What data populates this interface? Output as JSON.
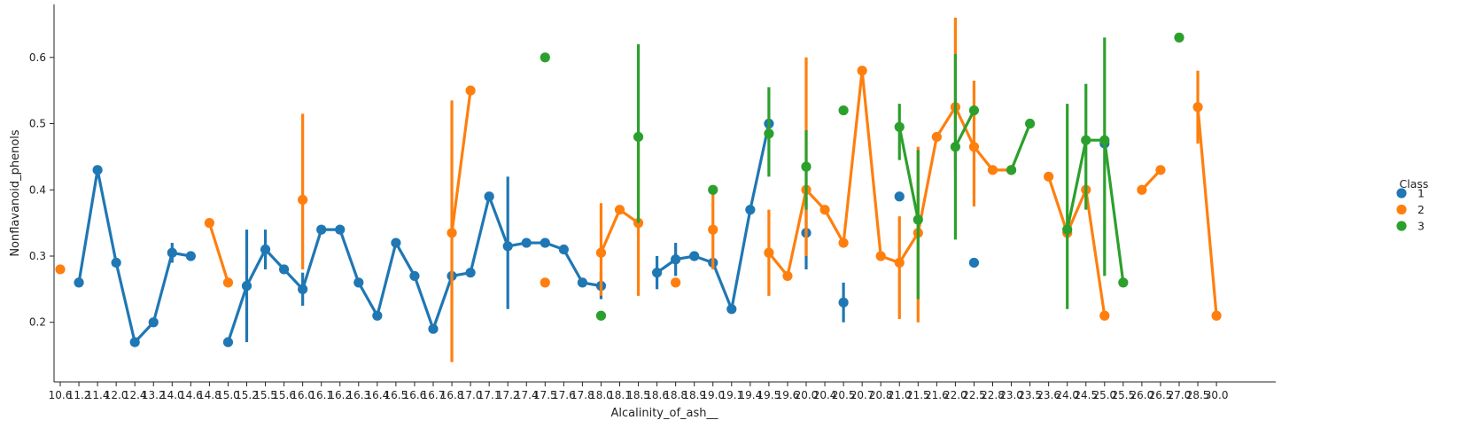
{
  "chart_data": {
    "type": "point",
    "xlabel": "Alcalinity_of_ash__",
    "ylabel": "Nonflavanoid_phenols",
    "ylim": [
      0.11,
      0.68
    ],
    "yticks": [
      0.2,
      0.3,
      0.4,
      0.5,
      0.6
    ],
    "grid": false,
    "legend_position": "right",
    "categories": [
      "10.6",
      "11.2",
      "11.4",
      "12.0",
      "12.4",
      "13.2",
      "14.0",
      "14.6",
      "14.8",
      "15.0",
      "15.2",
      "15.5",
      "15.6",
      "16.0",
      "16.1",
      "16.2",
      "16.3",
      "16.4",
      "16.5",
      "16.6",
      "16.7",
      "16.8",
      "17.0",
      "17.1",
      "17.2",
      "17.4",
      "17.5",
      "17.6",
      "17.8",
      "18.0",
      "18.1",
      "18.5",
      "18.6",
      "18.8",
      "18.9",
      "19.0",
      "19.1",
      "19.4",
      "19.5",
      "19.6",
      "20.0",
      "20.4",
      "20.5",
      "20.7",
      "20.8",
      "21.0",
      "21.5",
      "21.6",
      "22.0",
      "22.5",
      "22.8",
      "23.0",
      "23.5",
      "23.6",
      "24.0",
      "24.5",
      "25.0",
      "25.5",
      "26.0",
      "26.5",
      "27.0",
      "28.5",
      "30.0"
    ],
    "legend": {
      "title": "Class",
      "entries": [
        "1",
        "2",
        "3"
      ]
    },
    "series": [
      {
        "name": "1",
        "color": "#1f77b4",
        "points": [
          {
            "x": "11.2",
            "y": 0.26
          },
          {
            "x": "11.4",
            "y": 0.43
          },
          {
            "x": "12.0",
            "y": 0.29
          },
          {
            "x": "12.4",
            "y": 0.17
          },
          {
            "x": "13.2",
            "y": 0.2
          },
          {
            "x": "14.0",
            "y": 0.305,
            "err": [
              0.29,
              0.32
            ]
          },
          {
            "x": "14.6",
            "y": 0.3
          },
          {
            "x": "15.0",
            "y": 0.17
          },
          {
            "x": "15.2",
            "y": 0.255,
            "err": [
              0.17,
              0.34
            ]
          },
          {
            "x": "15.5",
            "y": 0.31,
            "err": [
              0.28,
              0.34
            ]
          },
          {
            "x": "15.6",
            "y": 0.28
          },
          {
            "x": "16.0",
            "y": 0.25,
            "err": [
              0.225,
              0.275
            ]
          },
          {
            "x": "16.1",
            "y": 0.34
          },
          {
            "x": "16.2",
            "y": 0.34
          },
          {
            "x": "16.3",
            "y": 0.26
          },
          {
            "x": "16.4",
            "y": 0.21
          },
          {
            "x": "16.5",
            "y": 0.32
          },
          {
            "x": "16.6",
            "y": 0.27
          },
          {
            "x": "16.7",
            "y": 0.19
          },
          {
            "x": "16.8",
            "y": 0.27
          },
          {
            "x": "17.0",
            "y": 0.275
          },
          {
            "x": "17.1",
            "y": 0.39
          },
          {
            "x": "17.2",
            "y": 0.315,
            "err": [
              0.22,
              0.42
            ]
          },
          {
            "x": "17.4",
            "y": 0.32
          },
          {
            "x": "17.5",
            "y": 0.32
          },
          {
            "x": "17.6",
            "y": 0.31
          },
          {
            "x": "17.8",
            "y": 0.26
          },
          {
            "x": "18.0",
            "y": 0.255,
            "err": [
              0.235,
              0.275
            ]
          },
          {
            "x": "18.6",
            "y": 0.275,
            "err": [
              0.25,
              0.3
            ]
          },
          {
            "x": "18.8",
            "y": 0.295,
            "err": [
              0.27,
              0.32
            ]
          },
          {
            "x": "18.9",
            "y": 0.3
          },
          {
            "x": "19.0",
            "y": 0.29
          },
          {
            "x": "19.1",
            "y": 0.22
          },
          {
            "x": "19.4",
            "y": 0.37
          },
          {
            "x": "19.5",
            "y": 0.5
          },
          {
            "x": "20.0",
            "y": 0.335,
            "err": [
              0.28,
              0.39
            ]
          },
          {
            "x": "20.5",
            "y": 0.23,
            "err": [
              0.2,
              0.26
            ]
          },
          {
            "x": "21.0",
            "y": 0.39
          },
          {
            "x": "22.5",
            "y": 0.29
          },
          {
            "x": "25.0",
            "y": 0.47
          }
        ]
      },
      {
        "name": "2",
        "color": "#ff7f0e",
        "points": [
          {
            "x": "10.6",
            "y": 0.28
          },
          {
            "x": "14.8",
            "y": 0.35
          },
          {
            "x": "15.0",
            "y": 0.26
          },
          {
            "x": "16.0",
            "y": 0.385,
            "err": [
              0.28,
              0.515
            ]
          },
          {
            "x": "16.8",
            "y": 0.335,
            "err": [
              0.14,
              0.535
            ]
          },
          {
            "x": "17.0",
            "y": 0.55
          },
          {
            "x": "17.5",
            "y": 0.26
          },
          {
            "x": "18.0",
            "y": 0.305,
            "err": [
              0.24,
              0.38
            ]
          },
          {
            "x": "18.1",
            "y": 0.37
          },
          {
            "x": "18.5",
            "y": 0.35,
            "err": [
              0.24,
              0.47
            ]
          },
          {
            "x": "18.8",
            "y": 0.26
          },
          {
            "x": "19.0",
            "y": 0.34,
            "err": [
              0.28,
              0.4
            ]
          },
          {
            "x": "19.5",
            "y": 0.305,
            "err": [
              0.24,
              0.37
            ]
          },
          {
            "x": "19.6",
            "y": 0.27
          },
          {
            "x": "20.0",
            "y": 0.4,
            "err": [
              0.3,
              0.6
            ]
          },
          {
            "x": "20.4",
            "y": 0.37
          },
          {
            "x": "20.5",
            "y": 0.32
          },
          {
            "x": "20.7",
            "y": 0.58
          },
          {
            "x": "20.8",
            "y": 0.3
          },
          {
            "x": "21.0",
            "y": 0.29,
            "err": [
              0.205,
              0.36
            ]
          },
          {
            "x": "21.5",
            "y": 0.335,
            "err": [
              0.2,
              0.465
            ]
          },
          {
            "x": "21.6",
            "y": 0.48
          },
          {
            "x": "22.0",
            "y": 0.525,
            "err": [
              0.43,
              0.66
            ]
          },
          {
            "x": "22.5",
            "y": 0.465,
            "err": [
              0.375,
              0.565
            ]
          },
          {
            "x": "22.8",
            "y": 0.43
          },
          {
            "x": "23.0",
            "y": 0.43
          },
          {
            "x": "23.6",
            "y": 0.42
          },
          {
            "x": "24.0",
            "y": 0.335
          },
          {
            "x": "24.5",
            "y": 0.4
          },
          {
            "x": "25.0",
            "y": 0.21
          },
          {
            "x": "26.0",
            "y": 0.4
          },
          {
            "x": "26.5",
            "y": 0.43
          },
          {
            "x": "28.5",
            "y": 0.525,
            "err": [
              0.47,
              0.58
            ]
          },
          {
            "x": "30.0",
            "y": 0.21
          }
        ]
      },
      {
        "name": "3",
        "color": "#2ca02c",
        "points": [
          {
            "x": "17.5",
            "y": 0.6
          },
          {
            "x": "18.0",
            "y": 0.21
          },
          {
            "x": "18.5",
            "y": 0.48,
            "err": [
              0.35,
              0.62
            ]
          },
          {
            "x": "19.0",
            "y": 0.4
          },
          {
            "x": "19.5",
            "y": 0.485,
            "err": [
              0.42,
              0.555
            ]
          },
          {
            "x": "20.0",
            "y": 0.435,
            "err": [
              0.37,
              0.49
            ]
          },
          {
            "x": "20.5",
            "y": 0.52
          },
          {
            "x": "21.0",
            "y": 0.495,
            "err": [
              0.445,
              0.53
            ]
          },
          {
            "x": "21.5",
            "y": 0.355,
            "err": [
              0.235,
              0.46
            ]
          },
          {
            "x": "22.0",
            "y": 0.465,
            "err": [
              0.325,
              0.605
            ]
          },
          {
            "x": "22.5",
            "y": 0.52
          },
          {
            "x": "23.0",
            "y": 0.43
          },
          {
            "x": "23.5",
            "y": 0.5
          },
          {
            "x": "24.0",
            "y": 0.34,
            "err": [
              0.22,
              0.53
            ]
          },
          {
            "x": "24.5",
            "y": 0.475,
            "err": [
              0.37,
              0.56
            ]
          },
          {
            "x": "25.0",
            "y": 0.475,
            "err": [
              0.27,
              0.63
            ]
          },
          {
            "x": "25.5",
            "y": 0.26
          },
          {
            "x": "27.0",
            "y": 0.63
          }
        ]
      }
    ]
  }
}
